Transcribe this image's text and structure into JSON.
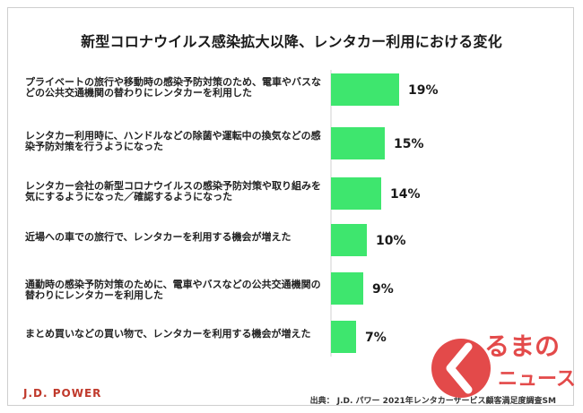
{
  "chart_data": {
    "type": "bar",
    "orientation": "horizontal",
    "title": "新型コロナウイルス感染拡大以降、レンタカー利用における変化",
    "categories": [
      "プライベートの旅行や移動時の感染予防対策のため、電車やバスなどの公共交通機関の替わりにレンタカーを利用した",
      "レンタカー利用時に、ハンドルなどの除菌や運転中の換気などの感染予防対策を行うようになった",
      "レンタカー会社の新型コロナウイルスの感染予防対策や取り組みを気にするようになった／確認するようになった",
      "近場への車での旅行で、レンタカーを利用する機会が増えた",
      "通勤時の感染予防対策のために、電車やバスなどの公共交通機関の替わりにレンタカーを利用した",
      "まとめ買いなどの買い物で、レンタカーを利用する機会が増えた"
    ],
    "values": [
      19,
      15,
      14,
      10,
      9,
      7
    ],
    "value_labels": [
      "19%",
      "15%",
      "14%",
      "10%",
      "9%",
      "7%"
    ],
    "bar_color": "#3ee66e",
    "xlim": [
      0,
      19
    ]
  },
  "footer": {
    "brand": "J.D. POWER",
    "source": "出典： J.D. パワー 2021年レンタカーサービス顧客満足度調査SM"
  },
  "logo": {
    "line1": "るまの",
    "line2": "ニュース",
    "color": "#e34a4a"
  }
}
